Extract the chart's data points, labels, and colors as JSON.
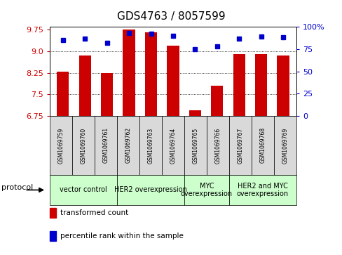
{
  "title": "GDS4763 / 8057599",
  "samples": [
    "GSM1069759",
    "GSM1069760",
    "GSM1069761",
    "GSM1069762",
    "GSM1069763",
    "GSM1069764",
    "GSM1069765",
    "GSM1069766",
    "GSM1069767",
    "GSM1069768",
    "GSM1069769"
  ],
  "bar_values": [
    8.3,
    8.85,
    8.25,
    9.75,
    9.65,
    9.2,
    6.95,
    7.8,
    8.9,
    8.9,
    8.85
  ],
  "dot_values": [
    85,
    87,
    82,
    93,
    92,
    90,
    75,
    78,
    87,
    89,
    88
  ],
  "bar_color": "#cc0000",
  "dot_color": "#0000cc",
  "ylim_left": [
    6.75,
    9.85
  ],
  "ylim_right": [
    0,
    100
  ],
  "yticks_left": [
    6.75,
    7.5,
    8.25,
    9.0,
    9.75
  ],
  "yticks_right": [
    0,
    25,
    50,
    75,
    100
  ],
  "ytick_labels_right": [
    "0",
    "25",
    "50",
    "75",
    "100%"
  ],
  "grid_values": [
    7.5,
    8.25,
    9.0
  ],
  "protocols": [
    {
      "label": "vector control",
      "start": 0,
      "end": 3
    },
    {
      "label": "HER2 overexpression",
      "start": 3,
      "end": 6
    },
    {
      "label": "MYC\noverexpression",
      "start": 6,
      "end": 8
    },
    {
      "label": "HER2 and MYC\noverexpression",
      "start": 8,
      "end": 11
    }
  ],
  "protocol_label": "protocol",
  "legend_bar_label": "transformed count",
  "legend_dot_label": "percentile rank within the sample",
  "bg_sample_row": "#d9d9d9",
  "bg_protocol_row": "#ccffcc",
  "title_fontsize": 11,
  "tick_fontsize": 8,
  "sample_fontsize": 5.5,
  "proto_fontsize": 7,
  "legend_fontsize": 7.5
}
